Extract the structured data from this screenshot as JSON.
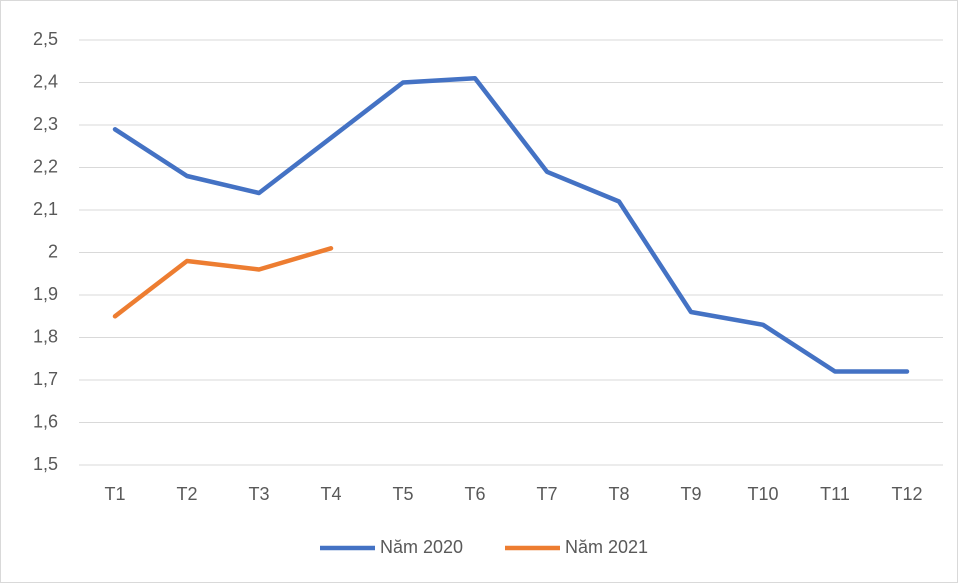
{
  "chart_data": {
    "type": "line",
    "categories": [
      "T1",
      "T2",
      "T3",
      "T4",
      "T5",
      "T6",
      "T7",
      "T8",
      "T9",
      "T10",
      "T11",
      "T12"
    ],
    "series": [
      {
        "name": "Năm 2020",
        "color": "#4472c4",
        "values": [
          2.29,
          2.18,
          2.14,
          2.27,
          2.4,
          2.41,
          2.19,
          2.12,
          1.86,
          1.83,
          1.72,
          1.72
        ]
      },
      {
        "name": "Năm 2021",
        "color": "#ed7d31",
        "values": [
          1.85,
          1.98,
          1.96,
          2.01,
          null,
          null,
          null,
          null,
          null,
          null,
          null,
          null
        ]
      }
    ],
    "ylim": [
      1.5,
      2.5
    ],
    "yticks": [
      {
        "value": 1.5,
        "label": "1,5"
      },
      {
        "value": 1.6,
        "label": "1,6"
      },
      {
        "value": 1.7,
        "label": "1,7"
      },
      {
        "value": 1.8,
        "label": "1,8"
      },
      {
        "value": 1.9,
        "label": "1,9"
      },
      2,
      {
        "value": 2.1,
        "label": "2,1"
      },
      {
        "value": 2.2,
        "label": "2,2"
      },
      {
        "value": 2.3,
        "label": "2,3"
      },
      {
        "value": 2.4,
        "label": "2,4"
      },
      {
        "value": 2.5,
        "label": "2,5"
      }
    ],
    "grid": true,
    "legend": "bottom"
  }
}
